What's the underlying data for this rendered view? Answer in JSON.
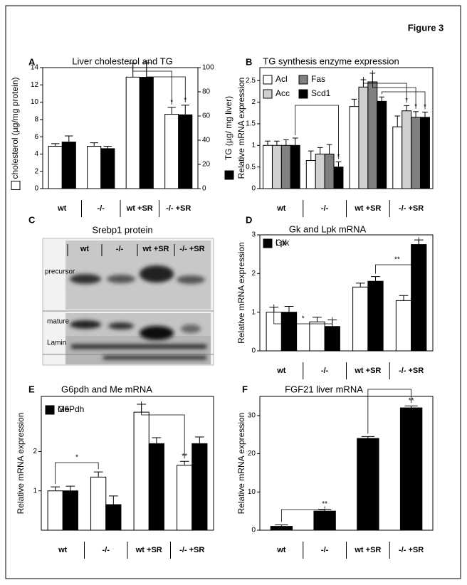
{
  "figure_label": "Figure 3",
  "blot": {
    "panel": "C",
    "title": "Srebp1 protein",
    "lanes": [
      "wt",
      "-/-",
      "wt +SR",
      "-/- +SR"
    ],
    "rows": [
      "precursor",
      "mature",
      "Lamin"
    ]
  },
  "chart_data": [
    {
      "type": "bar",
      "panel": "A",
      "title": "Liver cholesterol and TG",
      "ylabel": "cholesterol (µg/mg protein)",
      "y2label": "TG (µg/ mg liver)",
      "categories": [
        "wt",
        "-/-",
        "wt +SR",
        "-/- +SR"
      ],
      "series": [
        {
          "color": "#ffffff",
          "values": [
            4.9,
            4.9,
            12.9,
            8.6
          ],
          "errors": [
            0.3,
            0.4,
            1.6,
            0.8
          ],
          "marks": [
            null,
            null,
            null,
            "*"
          ]
        },
        {
          "color": "#000000",
          "axis": "y2",
          "values": [
            38.5,
            33,
            92,
            61
          ],
          "errors": [
            5,
            2,
            12,
            8
          ],
          "marks": [
            null,
            null,
            null,
            "*"
          ]
        }
      ],
      "ylim": [
        0,
        14
      ],
      "yticks": [
        0,
        2,
        4,
        6,
        8,
        10,
        12,
        14
      ],
      "y2lim": [
        0,
        100
      ],
      "y2ticks": [
        0,
        20,
        40,
        60,
        80,
        100
      ]
    },
    {
      "type": "bar",
      "panel": "B",
      "title": "TG synthesis enzyme expression",
      "ylabel": "Relative mRNA expression",
      "categories": [
        "wt",
        "-/-",
        "wt +SR",
        "-/- +SR"
      ],
      "series": [
        {
          "name": "Acl",
          "color": "#ffffff",
          "values": [
            1.0,
            0.65,
            1.9,
            1.43
          ],
          "errors": [
            0.1,
            0.22,
            0.17,
            0.25
          ],
          "marks": [
            null,
            null,
            null,
            null
          ]
        },
        {
          "name": "Acc",
          "color": "#d0d0d0",
          "values": [
            1.0,
            0.8,
            2.35,
            1.8
          ],
          "errors": [
            0.1,
            0.15,
            0.17,
            0.12
          ],
          "marks": [
            null,
            null,
            null,
            "*"
          ]
        },
        {
          "name": "Fas",
          "color": "#808080",
          "values": [
            1.0,
            0.8,
            2.47,
            1.65
          ],
          "errors": [
            0.13,
            0.22,
            0.2,
            0.13
          ],
          "marks": [
            null,
            null,
            null,
            "*"
          ]
        },
        {
          "name": "Scd1",
          "color": "#000000",
          "values": [
            1.0,
            0.5,
            2.02,
            1.65
          ],
          "errors": [
            0.17,
            0.12,
            0.1,
            0.12
          ],
          "marks": [
            null,
            "*",
            null,
            "*"
          ]
        }
      ],
      "ylim": [
        0,
        2.8
      ],
      "yticks": [
        0,
        0.5,
        1,
        1.5,
        2,
        2.5
      ]
    },
    {
      "type": "bar",
      "panel": "D",
      "title": "Gk and Lpk mRNA",
      "ylabel": "Relative mRNA expression",
      "categories": [
        "wt",
        "-/-",
        "wt +SR",
        "-/- +SR"
      ],
      "series": [
        {
          "name": "Gk",
          "color": "#ffffff",
          "values": [
            1.0,
            0.75,
            1.65,
            1.3
          ],
          "errors": [
            0.13,
            0.12,
            0.1,
            0.13
          ]
        },
        {
          "name": "Lpk",
          "color": "#000000",
          "values": [
            1.0,
            0.63,
            1.8,
            2.75
          ],
          "errors": [
            0.15,
            0.17,
            0.12,
            0.12
          ]
        }
      ],
      "annotations": [
        "*",
        "**"
      ],
      "ylim": [
        0,
        3
      ],
      "yticks": [
        0,
        1,
        2,
        3
      ]
    },
    {
      "type": "bar",
      "panel": "E",
      "title": "G6pdh and Me mRNA",
      "ylabel": "Relative mRNA expression",
      "categories": [
        "wt",
        "-/-",
        "wt +SR",
        "-/- +SR"
      ],
      "series": [
        {
          "name": "G6Pdh",
          "color": "#ffffff",
          "values": [
            1.0,
            1.35,
            3.0,
            1.65
          ],
          "errors": [
            0.1,
            0.13,
            0.2,
            0.1
          ],
          "marks": [
            null,
            null,
            null,
            "**"
          ]
        },
        {
          "name": "Me",
          "color": "#000000",
          "values": [
            1.0,
            0.65,
            2.2,
            2.2
          ],
          "errors": [
            0.12,
            0.22,
            0.15,
            0.17
          ]
        }
      ],
      "annotations": [
        "*"
      ],
      "ylim": [
        0,
        3.4
      ],
      "yticks": [
        1,
        2
      ]
    },
    {
      "type": "bar",
      "panel": "F",
      "title": "FGF21 liver mRNA",
      "ylabel": "Relative mRNA expression",
      "categories": [
        "wt",
        "-/-",
        "wt +SR",
        "-/- +SR"
      ],
      "series": [
        {
          "color": "#000000",
          "values": [
            1,
            5,
            24,
            32
          ],
          "errors": [
            0.4,
            0.5,
            0.5,
            0.5
          ],
          "marks": [
            null,
            "**",
            null,
            "**"
          ]
        }
      ],
      "ylim": [
        0,
        35
      ],
      "yticks": [
        0,
        10,
        20,
        30
      ]
    }
  ]
}
